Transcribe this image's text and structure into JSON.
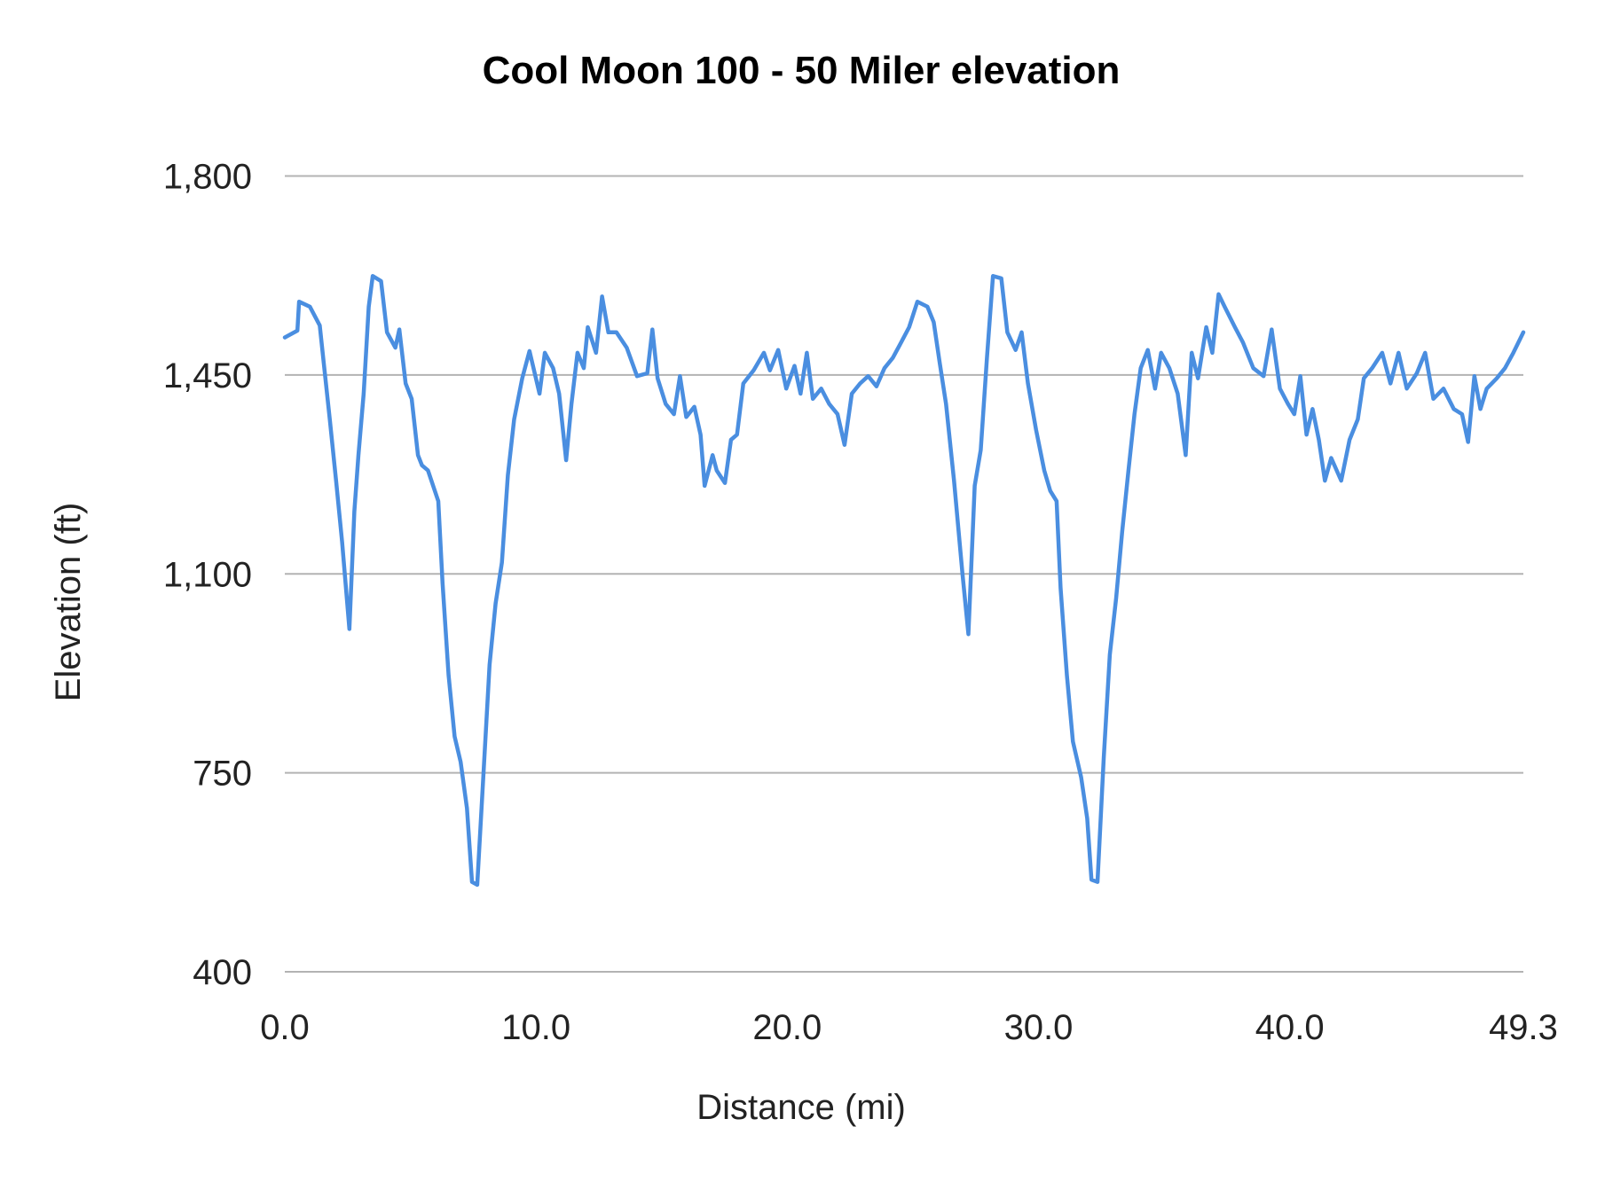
{
  "chart_data": {
    "type": "line",
    "title": "Cool Moon 100 - 50 Miler elevation",
    "xlabel": "Distance (mi)",
    "ylabel": "Elevation (ft)",
    "xlim": [
      0,
      49.3
    ],
    "ylim": [
      400,
      1800
    ],
    "x_ticks": [
      "0.0",
      "10.0",
      "20.0",
      "30.0",
      "40.0",
      "49.3"
    ],
    "x_tick_values": [
      0,
      10,
      20,
      30,
      40,
      49.3
    ],
    "y_ticks": [
      "1,800",
      "1,450",
      "1,100",
      "750",
      "400"
    ],
    "y_tick_values": [
      1800,
      1450,
      1100,
      750,
      400
    ],
    "grid": "horizontal",
    "legend": "none",
    "line_color": "#4a8ee0",
    "grid_color": "#b3b3b3",
    "series": [
      {
        "x": [
          0,
          0.5,
          0.57,
          1.0,
          1.39,
          1.55,
          1.79,
          2.04,
          2.28,
          2.57,
          2.77,
          2.93,
          3.14,
          3.34,
          3.5,
          3.83,
          4.07,
          4.4,
          4.56,
          4.81,
          5.05,
          5.3,
          5.46,
          5.7,
          6.11,
          6.28,
          6.52,
          6.76,
          7.0,
          7.25,
          7.45,
          7.66,
          7.9,
          8.15,
          8.39,
          8.64,
          8.88,
          9.13,
          9.45,
          9.74,
          10.14,
          10.35,
          10.68,
          10.92,
          11.2,
          11.41,
          11.65,
          11.9,
          12.06,
          12.39,
          12.63,
          12.88,
          13.2,
          13.61,
          14.02,
          14.43,
          14.63,
          14.84,
          15.16,
          15.49,
          15.73,
          15.98,
          16.3,
          16.55,
          16.71,
          17.03,
          17.19,
          17.52,
          17.76,
          18.0,
          18.25,
          18.66,
          19.07,
          19.31,
          19.64,
          19.96,
          20.29,
          20.53,
          20.78,
          21.02,
          21.35,
          21.67,
          22.0,
          22.28,
          22.57,
          22.9,
          23.22,
          23.55,
          23.87,
          24.2,
          24.53,
          24.85,
          25.18,
          25.58,
          25.83,
          26.07,
          26.32,
          26.64,
          26.97,
          27.21,
          27.46,
          27.7,
          27.95,
          28.19,
          28.52,
          28.76,
          29.09,
          29.33,
          29.58,
          29.9,
          30.23,
          30.47,
          30.72,
          30.88,
          31.13,
          31.37,
          31.7,
          31.94,
          32.11,
          32.35,
          32.6,
          32.84,
          33.09,
          33.33,
          33.58,
          33.82,
          34.07,
          34.35,
          34.64,
          34.88,
          35.21,
          35.54,
          35.86,
          36.1,
          36.35,
          36.68,
          36.92,
          37.17,
          37.41,
          37.82,
          38.14,
          38.55,
          38.96,
          39.28,
          39.61,
          39.93,
          40.18,
          40.42,
          40.67,
          40.91,
          41.16,
          41.4,
          41.65,
          42.05,
          42.38,
          42.71,
          42.95,
          43.28,
          43.68,
          44.01,
          44.33,
          44.66,
          45.06,
          45.39,
          45.72,
          46.12,
          46.53,
          46.86,
          47.1,
          47.35,
          47.59,
          47.84,
          48.24,
          48.57,
          48.9,
          49.3
        ],
        "y": [
          1516,
          1528,
          1579,
          1570,
          1537,
          1471,
          1372,
          1264,
          1156,
          1003,
          1210,
          1309,
          1417,
          1570,
          1624,
          1615,
          1525,
          1498,
          1530,
          1435,
          1408,
          1309,
          1291,
          1282,
          1228,
          1084,
          922,
          814,
          769,
          688,
          558,
          553,
          742,
          940,
          1048,
          1120,
          1273,
          1372,
          1444,
          1492,
          1417,
          1489,
          1462,
          1417,
          1300,
          1399,
          1489,
          1462,
          1534,
          1489,
          1588,
          1525,
          1525,
          1498,
          1448,
          1453,
          1530,
          1444,
          1399,
          1381,
          1448,
          1376,
          1394,
          1345,
          1255,
          1309,
          1282,
          1260,
          1336,
          1345,
          1435,
          1458,
          1489,
          1458,
          1494,
          1426,
          1466,
          1417,
          1489,
          1408,
          1426,
          1399,
          1381,
          1327,
          1417,
          1435,
          1448,
          1430,
          1462,
          1480,
          1507,
          1534,
          1579,
          1570,
          1543,
          1471,
          1399,
          1264,
          1102,
          994,
          1255,
          1318,
          1480,
          1624,
          1620,
          1525,
          1494,
          1525,
          1435,
          1354,
          1282,
          1246,
          1228,
          1075,
          922,
          805,
          742,
          670,
          562,
          558,
          778,
          958,
          1057,
          1174,
          1282,
          1381,
          1462,
          1494,
          1426,
          1489,
          1462,
          1417,
          1309,
          1489,
          1444,
          1534,
          1489,
          1592,
          1570,
          1534,
          1507,
          1462,
          1448,
          1530,
          1426,
          1399,
          1381,
          1448,
          1345,
          1390,
          1336,
          1264,
          1304,
          1264,
          1336,
          1372,
          1444,
          1462,
          1489,
          1435,
          1489,
          1426,
          1453,
          1489,
          1408,
          1426,
          1390,
          1381,
          1332,
          1448,
          1390,
          1426,
          1444,
          1462,
          1489,
          1525
        ]
      }
    ]
  }
}
